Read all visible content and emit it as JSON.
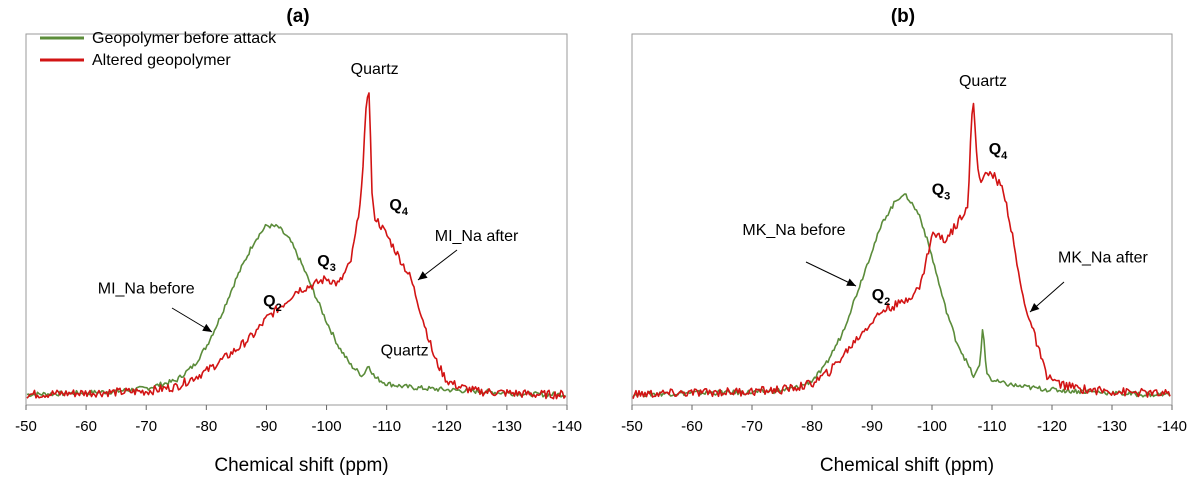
{
  "chart_data": [
    {
      "type": "line",
      "title": "(a)",
      "xlabel": "Chemical shift (ppm)",
      "ylabel": "",
      "xlim": [
        -50,
        -140
      ],
      "x_reversed": true,
      "x_ticks": [
        -50,
        -60,
        -70,
        -80,
        -90,
        -100,
        -110,
        -120,
        -130,
        -140
      ],
      "x_tick_labels": [
        "-50",
        "-60",
        "-70",
        "-80",
        "-90",
        "-100",
        "-110",
        "-120",
        "-130",
        "-140"
      ],
      "ylim": [
        0,
        1
      ],
      "grid": false,
      "legend": {
        "placement": "top-left",
        "entries": [
          {
            "label": "Geopolymer before attack",
            "color": "#5B8C3A"
          },
          {
            "label": "Altered geopolymer",
            "color": "#D21414"
          }
        ]
      },
      "series": [
        {
          "name": "Geopolymer before attack",
          "color": "#5B8C3A",
          "x": [
            -50,
            -60,
            -65,
            -70,
            -75,
            -78,
            -80,
            -82,
            -85,
            -88,
            -90,
            -92,
            -94,
            -96,
            -98,
            -100,
            -102,
            -104,
            -106,
            -107,
            -108,
            -110,
            -113,
            -116,
            -120,
            -125,
            -130,
            -135,
            -140
          ],
          "y": [
            0.005,
            0.01,
            0.015,
            0.025,
            0.05,
            0.1,
            0.16,
            0.24,
            0.38,
            0.5,
            0.55,
            0.545,
            0.5,
            0.42,
            0.33,
            0.24,
            0.16,
            0.1,
            0.065,
            0.1,
            0.06,
            0.04,
            0.03,
            0.025,
            0.02,
            0.015,
            0.01,
            0.005,
            0.005
          ]
        },
        {
          "name": "Altered geopolymer",
          "color": "#D21414",
          "x": [
            -50,
            -60,
            -70,
            -75,
            -78,
            -80,
            -85,
            -88,
            -90,
            -93,
            -95,
            -98,
            -100,
            -102,
            -104,
            -105,
            -106,
            -106.6,
            -107,
            -107.3,
            -107.6,
            -108,
            -109,
            -110,
            -112,
            -114,
            -116,
            -118,
            -120,
            -122,
            -125,
            -130,
            -135,
            -140
          ],
          "y": [
            0.005,
            0.01,
            0.015,
            0.03,
            0.06,
            0.08,
            0.15,
            0.2,
            0.25,
            0.3,
            0.34,
            0.36,
            0.38,
            0.36,
            0.43,
            0.54,
            0.7,
            0.95,
            1.0,
            0.85,
            0.62,
            0.58,
            0.55,
            0.52,
            0.45,
            0.38,
            0.25,
            0.12,
            0.05,
            0.03,
            0.015,
            0.01,
            0.005,
            0.005
          ]
        }
      ],
      "annotations": [
        {
          "text": "Quartz",
          "x": -108,
          "y": 1.02
        },
        {
          "text": "Q4",
          "x": -112,
          "y": 0.6
        },
        {
          "text": "MI_Na after",
          "x": -118,
          "y": 0.5
        },
        {
          "text": "Q3",
          "x": -100,
          "y": 0.42
        },
        {
          "text": "MI_Na before",
          "x": -70,
          "y": 0.33
        },
        {
          "text": "Q2",
          "x": -91,
          "y": 0.29
        },
        {
          "text": "Quartz",
          "x": -109,
          "y": 0.13
        }
      ]
    },
    {
      "type": "line",
      "title": "(b)",
      "xlabel": "Chemical shift (ppm)",
      "ylabel": "",
      "xlim": [
        -50,
        -140
      ],
      "x_reversed": true,
      "x_ticks": [
        -50,
        -60,
        -70,
        -80,
        -90,
        -100,
        -110,
        -120,
        -130,
        -140
      ],
      "x_tick_labels": [
        "-50",
        "-60",
        "-70",
        "-80",
        "-90",
        "-100",
        "-110",
        "-120",
        "-130",
        "-140"
      ],
      "ylim": [
        0,
        1
      ],
      "grid": false,
      "series": [
        {
          "name": "Geopolymer before attack",
          "color": "#5B8C3A",
          "x": [
            -50,
            -60,
            -70,
            -75,
            -78,
            -80,
            -82,
            -85,
            -88,
            -90,
            -92,
            -94,
            -95,
            -96,
            -98,
            -100,
            -102,
            -104,
            -106,
            -107,
            -108,
            -108.5,
            -109,
            -110,
            -112,
            -115,
            -120,
            -125,
            -130,
            -135,
            -140
          ],
          "y": [
            0.005,
            0.01,
            0.012,
            0.018,
            0.03,
            0.05,
            0.09,
            0.2,
            0.36,
            0.47,
            0.57,
            0.63,
            0.65,
            0.64,
            0.58,
            0.45,
            0.3,
            0.18,
            0.1,
            0.06,
            0.1,
            0.24,
            0.08,
            0.05,
            0.04,
            0.03,
            0.02,
            0.015,
            0.01,
            0.005,
            0.005
          ]
        },
        {
          "name": "Altered geopolymer",
          "color": "#D21414",
          "x": [
            -50,
            -60,
            -70,
            -75,
            -78,
            -80,
            -83,
            -86,
            -89,
            -92,
            -95,
            -98,
            -100,
            -101,
            -102,
            -104,
            -106,
            -106.6,
            -107,
            -107.5,
            -108,
            -110,
            -112,
            -113,
            -115,
            -117,
            -119,
            -121,
            -123,
            -126,
            -130,
            -135,
            -140
          ],
          "y": [
            0.005,
            0.01,
            0.015,
            0.02,
            0.03,
            0.04,
            0.08,
            0.15,
            0.22,
            0.28,
            0.3,
            0.35,
            0.52,
            0.52,
            0.5,
            0.55,
            0.62,
            0.9,
            0.94,
            0.75,
            0.7,
            0.72,
            0.66,
            0.56,
            0.33,
            0.2,
            0.07,
            0.04,
            0.03,
            0.02,
            0.015,
            0.01,
            0.005
          ]
        }
      ],
      "annotations": [
        {
          "text": "Quartz",
          "x": -108.5,
          "y": 0.98
        },
        {
          "text": "Q4",
          "x": -111,
          "y": 0.78
        },
        {
          "text": "Q3",
          "x": -101.5,
          "y": 0.65
        },
        {
          "text": "MK_Na before",
          "x": -77,
          "y": 0.52
        },
        {
          "text": "MK_Na after",
          "x": -121,
          "y": 0.43
        },
        {
          "text": "Q2",
          "x": -91.5,
          "y": 0.31
        }
      ]
    }
  ]
}
